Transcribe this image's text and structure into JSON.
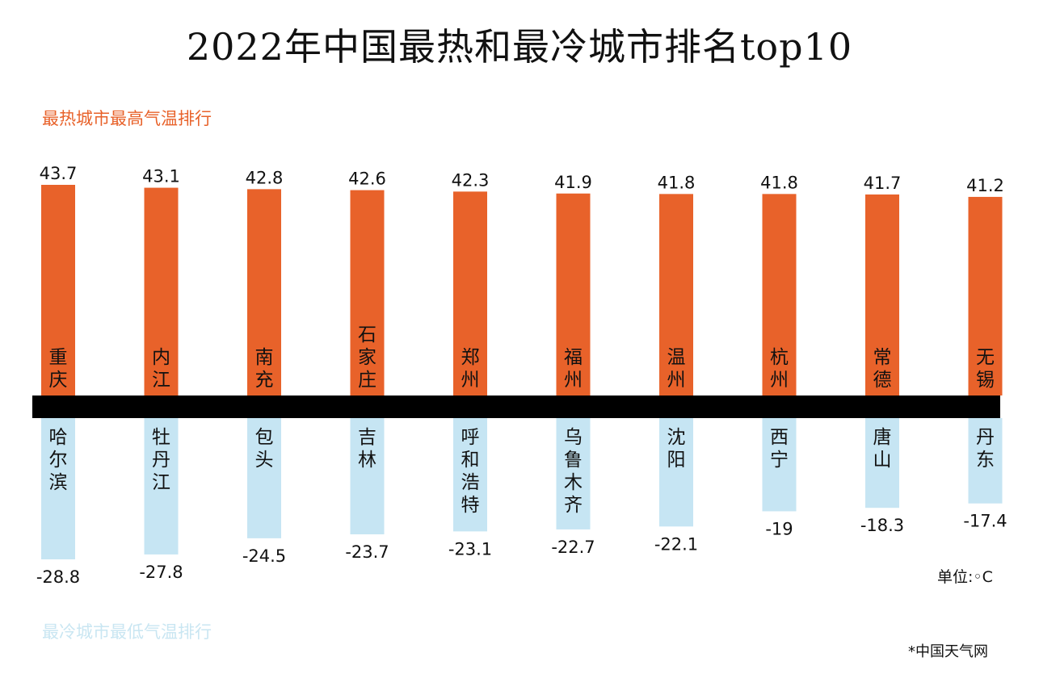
{
  "title": "2022年中国最热和最冷城市排名top10",
  "hot_subtitle": "最热城市最高气温排行",
  "cold_subtitle": "最冷城市最低气温排行",
  "unit_label": "单位:◦C",
  "source_label": "*中国天气网",
  "colors": {
    "hot": "#e8622a",
    "cold": "#c6e5f3",
    "axis": "#000000",
    "text": "#111111"
  },
  "chart_data": {
    "type": "bar",
    "title": "2022年中国最热和最冷城市排名top10",
    "series": [
      {
        "name": "最热城市最高气温排行",
        "categories": [
          "重庆",
          "内江",
          "南充",
          "石家庄",
          "郑州",
          "福州",
          "温州",
          "杭州",
          "常德",
          "无锡"
        ],
        "values": [
          43.7,
          43.1,
          42.8,
          42.6,
          42.3,
          41.9,
          41.8,
          41.8,
          41.7,
          41.2
        ],
        "labels": [
          "43.7",
          "43.1",
          "42.8",
          "42.6",
          "42.3",
          "41.9",
          "41.8",
          "41.8",
          "41.7",
          "41.2"
        ]
      },
      {
        "name": "最冷城市最低气温排行",
        "categories": [
          "哈尔滨",
          "牡丹江",
          "包头",
          "吉林",
          "呼和浩特",
          "乌鲁木齐",
          "沈阳",
          "西宁",
          "唐山",
          "丹东"
        ],
        "values": [
          -28.8,
          -27.8,
          -24.5,
          -23.7,
          -23.1,
          -22.7,
          -22.1,
          -19,
          -18.3,
          -17.4
        ],
        "labels": [
          "-28.8",
          "-27.8",
          "-24.5",
          "-23.7",
          "-23.1",
          "-22.7",
          "-22.1",
          "-19",
          "-18.3",
          "-17.4"
        ]
      }
    ]
  }
}
